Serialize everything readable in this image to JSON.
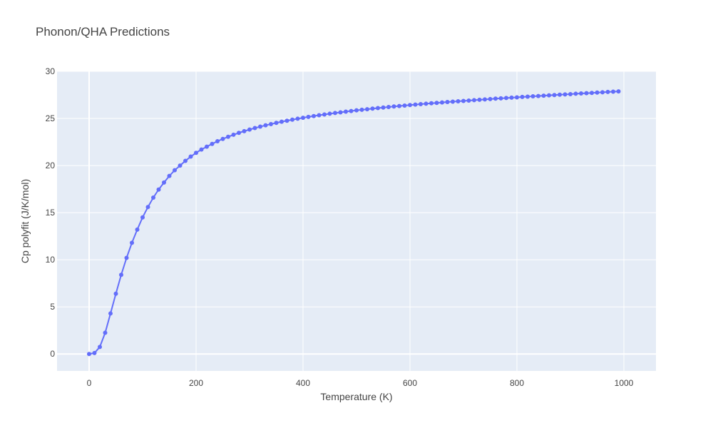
{
  "chart_data": {
    "type": "line",
    "title": "Phonon/QHA Predictions",
    "xlabel": "Temperature (K)",
    "ylabel": "Cp polyfit (J/K/mol)",
    "xlim": [
      -60,
      1060
    ],
    "ylim": [
      -1.8,
      30
    ],
    "xticks": [
      0,
      200,
      400,
      600,
      800,
      1000
    ],
    "yticks": [
      0,
      5,
      10,
      15,
      20,
      25,
      30
    ],
    "grid": true,
    "legend": "none",
    "colors": {
      "plot_bg": "#e5ecf6",
      "grid": "#ffffff",
      "series": "#636efa"
    },
    "series": [
      {
        "mode": "lines+markers",
        "x": [
          0,
          10,
          20,
          30,
          40,
          50,
          60,
          70,
          80,
          90,
          100,
          110,
          120,
          130,
          140,
          150,
          160,
          170,
          180,
          190,
          200,
          210,
          220,
          230,
          240,
          250,
          260,
          270,
          280,
          290,
          300,
          310,
          320,
          330,
          340,
          350,
          360,
          370,
          380,
          390,
          400,
          410,
          420,
          430,
          440,
          450,
          460,
          470,
          480,
          490,
          500,
          510,
          520,
          530,
          540,
          550,
          560,
          570,
          580,
          590,
          600,
          610,
          620,
          630,
          640,
          650,
          660,
          670,
          680,
          690,
          700,
          710,
          720,
          730,
          740,
          750,
          760,
          770,
          780,
          790,
          800,
          810,
          820,
          830,
          840,
          850,
          860,
          870,
          880,
          890,
          900,
          910,
          920,
          930,
          940,
          950,
          960,
          970,
          980,
          990
        ],
        "y": [
          0,
          0.1,
          0.75,
          2.25,
          4.3,
          6.4,
          8.4,
          10.2,
          11.8,
          13.2,
          14.5,
          15.6,
          16.6,
          17.45,
          18.2,
          18.9,
          19.5,
          20.0,
          20.5,
          20.95,
          21.35,
          21.7,
          22.0,
          22.3,
          22.58,
          22.83,
          23.05,
          23.27,
          23.47,
          23.65,
          23.82,
          23.98,
          24.13,
          24.27,
          24.4,
          24.53,
          24.65,
          24.76,
          24.87,
          24.97,
          25.07,
          25.16,
          25.25,
          25.34,
          25.42,
          25.5,
          25.58,
          25.65,
          25.72,
          25.79,
          25.86,
          25.92,
          25.98,
          26.04,
          26.1,
          26.16,
          26.21,
          26.27,
          26.32,
          26.37,
          26.42,
          26.47,
          26.52,
          26.56,
          26.61,
          26.65,
          26.7,
          26.74,
          26.78,
          26.82,
          26.86,
          26.9,
          26.94,
          26.98,
          27.02,
          27.06,
          27.1,
          27.13,
          27.17,
          27.21,
          27.24,
          27.28,
          27.31,
          27.35,
          27.38,
          27.42,
          27.45,
          27.48,
          27.52,
          27.55,
          27.58,
          27.62,
          27.65,
          27.68,
          27.71,
          27.75,
          27.78,
          27.81,
          27.84,
          27.87
        ]
      }
    ]
  }
}
